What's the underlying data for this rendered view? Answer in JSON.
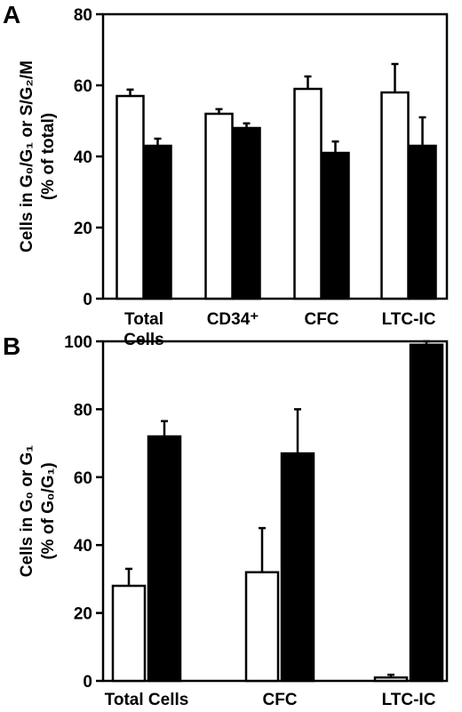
{
  "colors": {
    "open_bar": "#ffffff",
    "filled_bar": "#000000",
    "axis": "#000000"
  },
  "chart_data": [
    {
      "type": "bar",
      "panel_label": "A",
      "categories": [
        [
          "Total",
          "Cells"
        ],
        [
          "CD34⁺"
        ],
        [
          "CFC"
        ],
        [
          "LTC-IC"
        ]
      ],
      "ylabel": [
        "Cells in G₀/G₁ or S/G₂/M",
        "(% of total)"
      ],
      "ylim": [
        0,
        80
      ],
      "yticks": [
        0,
        20,
        40,
        60,
        80
      ],
      "series": [
        {
          "style": "open",
          "values": [
            57,
            52,
            59,
            58
          ],
          "errors": [
            1.8,
            1.3,
            3.5,
            8
          ]
        },
        {
          "style": "filled",
          "values": [
            43,
            48,
            41,
            43
          ],
          "errors": [
            2,
            1.3,
            3.2,
            8
          ]
        }
      ]
    },
    {
      "type": "bar",
      "panel_label": "B",
      "categories": [
        [
          "Total Cells"
        ],
        [
          "CFC"
        ],
        [
          "LTC-IC"
        ]
      ],
      "ylabel": [
        "Cells in G₀ or G₁",
        "(% of G₀/G₁)"
      ],
      "ylim": [
        0,
        100
      ],
      "yticks": [
        0,
        20,
        40,
        60,
        80,
        100
      ],
      "series": [
        {
          "style": "open",
          "values": [
            28,
            32,
            1
          ],
          "errors": [
            5,
            13,
            0.8
          ]
        },
        {
          "style": "filled",
          "values": [
            72,
            67,
            99
          ],
          "errors": [
            4.5,
            13,
            1
          ]
        }
      ]
    }
  ]
}
